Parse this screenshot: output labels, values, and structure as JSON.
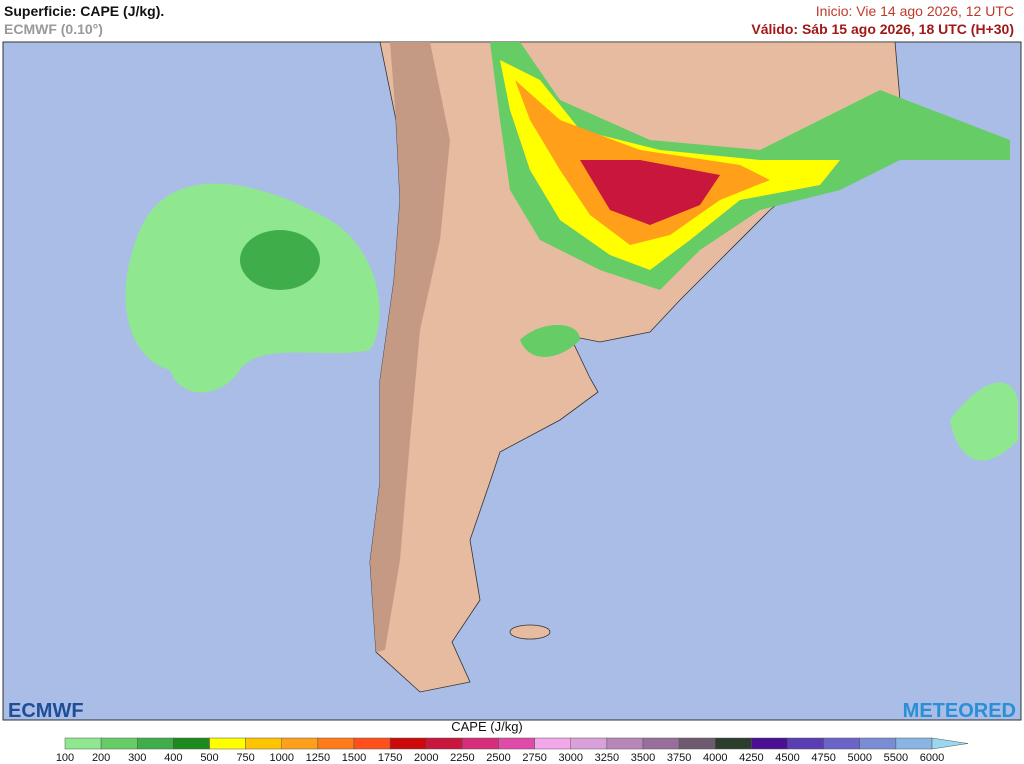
{
  "header": {
    "title": "Superficie: CAPE (J/kg).",
    "model": "ECMWF (0.10°)",
    "init": "Inicio: Vie 14 ago 2026, 12 UTC",
    "valid": "Válido: Sáb 15 ago 2026, 18 UTC (H+30)"
  },
  "logos": {
    "left": "ECMWF",
    "right": "METEORED"
  },
  "colorbar": {
    "label": "CAPE (J/kg)",
    "ticks": [
      100,
      200,
      300,
      400,
      500,
      750,
      1000,
      1250,
      1500,
      1750,
      2000,
      2250,
      2500,
      2750,
      3000,
      3250,
      3500,
      3750,
      4000,
      4250,
      4500,
      4750,
      5000,
      5500,
      6000
    ],
    "colors": [
      "#8fe88f",
      "#66cc66",
      "#3fae4a",
      "#1c8a1c",
      "#ffff00",
      "#ffc400",
      "#ff9f1a",
      "#ff7a1a",
      "#ff4f1a",
      "#cc0a0a",
      "#c8163d",
      "#d62d7a",
      "#e04aa8",
      "#f4a6ea",
      "#d9a0d9",
      "#b886b8",
      "#9a6e9a",
      "#6e5a6e",
      "#2b3d2b",
      "#4b0f96",
      "#5a3cb4",
      "#6a64c8",
      "#7a8cd4",
      "#8ab4e4",
      "#9ad8f0"
    ]
  }
}
